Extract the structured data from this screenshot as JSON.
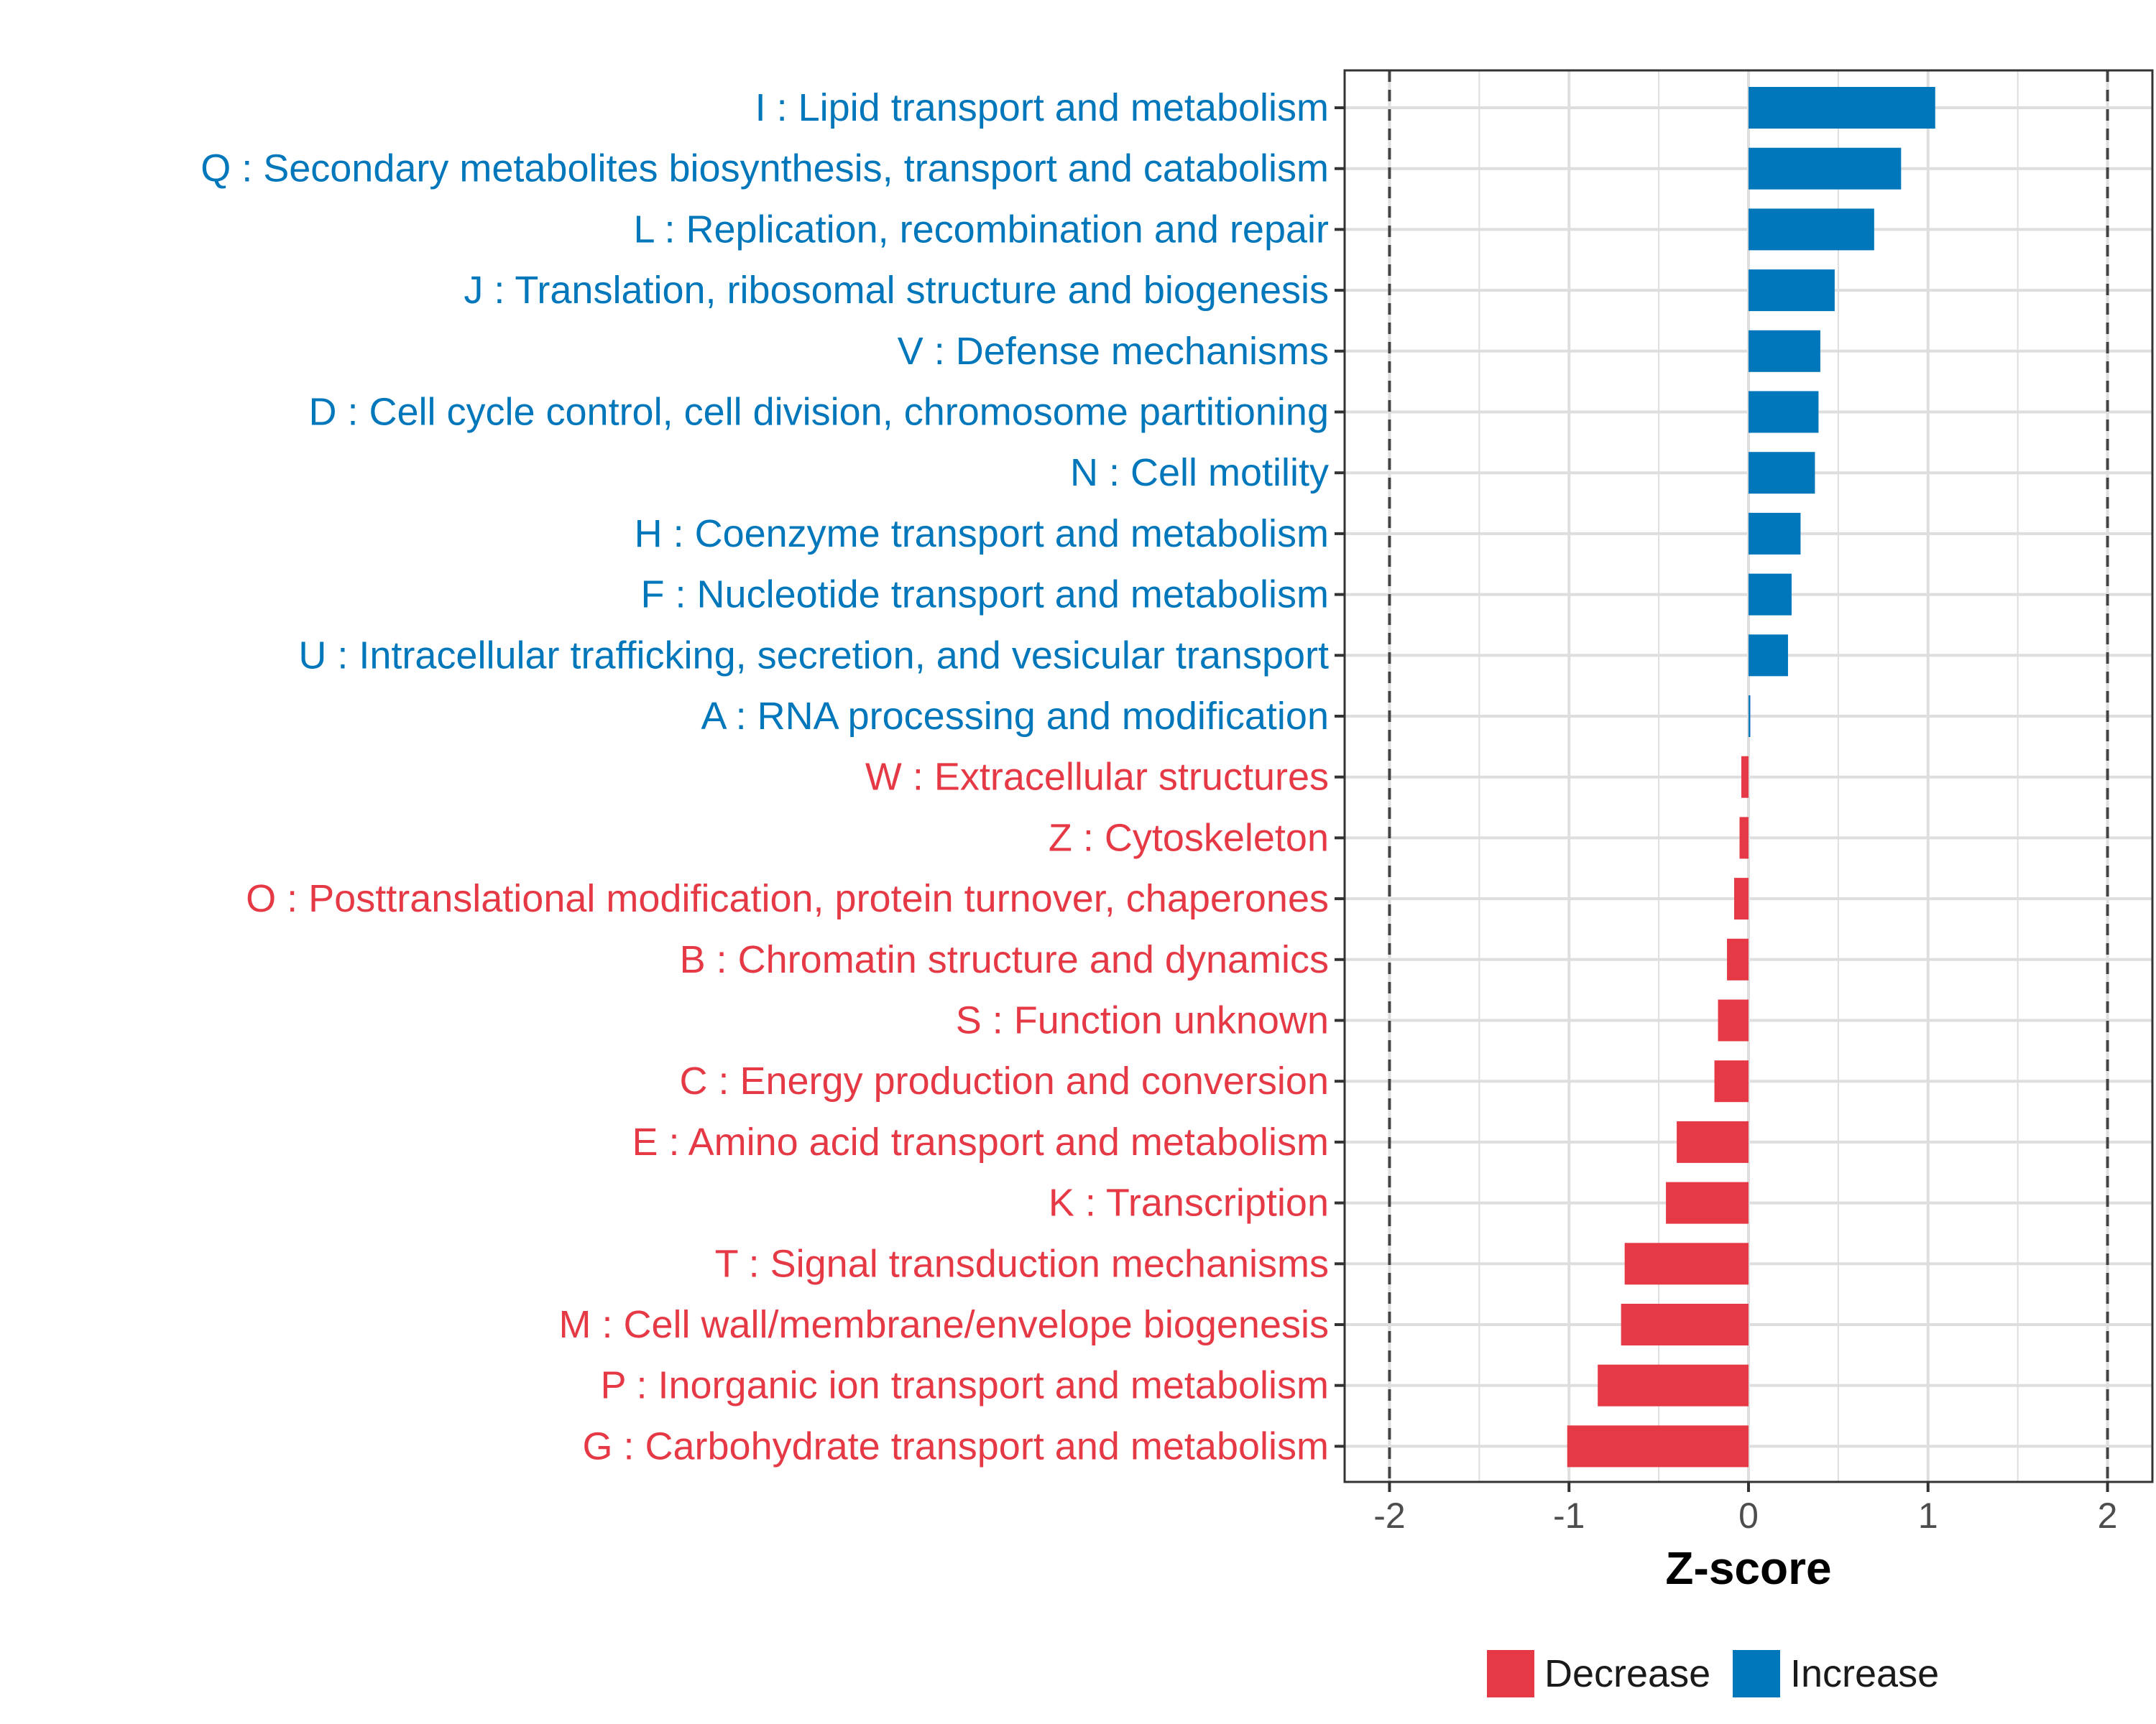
{
  "chart_data": {
    "type": "bar",
    "orientation": "horizontal",
    "xlabel": "Z-score",
    "xlim": [
      -2.25,
      2.25
    ],
    "xticks": [
      -2,
      -1,
      0,
      1,
      2
    ],
    "xtick_labels": [
      "-2",
      "-1",
      "0",
      "1",
      "2"
    ],
    "reference_lines": [
      -2,
      2
    ],
    "grid": true,
    "legend_position": "bottom",
    "colors": {
      "Increase": "#0077bb",
      "Decrease": "#e63946"
    },
    "legend": [
      {
        "label": "Decrease",
        "color": "#e63946"
      },
      {
        "label": "Increase",
        "color": "#0077bb"
      }
    ],
    "categories": [
      "I : Lipid transport and metabolism",
      "Q : Secondary metabolites biosynthesis, transport and catabolism",
      "L : Replication, recombination and repair",
      "J : Translation, ribosomal structure and biogenesis",
      "V : Defense mechanisms",
      "D : Cell cycle control, cell division, chromosome partitioning",
      "N : Cell motility",
      "H : Coenzyme transport and metabolism",
      "F : Nucleotide transport and metabolism",
      "U : Intracellular trafficking, secretion, and vesicular transport",
      "A : RNA processing and modification",
      "W : Extracellular structures",
      "Z : Cytoskeleton",
      "O : Posttranslational modification, protein turnover, chaperones",
      "B : Chromatin structure and dynamics",
      "S : Function unknown",
      "C : Energy production and conversion",
      "E : Amino acid transport and metabolism",
      "K : Transcription",
      "T : Signal transduction mechanisms",
      "M : Cell wall/membrane/envelope biogenesis",
      "P : Inorganic ion transport and metabolism",
      "G : Carbohydrate transport and metabolism"
    ],
    "values": [
      1.04,
      0.85,
      0.7,
      0.48,
      0.4,
      0.39,
      0.37,
      0.29,
      0.24,
      0.22,
      0.01,
      -0.04,
      -0.05,
      -0.08,
      -0.12,
      -0.17,
      -0.19,
      -0.4,
      -0.46,
      -0.69,
      -0.71,
      -0.84,
      -1.01
    ],
    "groups": [
      "Increase",
      "Increase",
      "Increase",
      "Increase",
      "Increase",
      "Increase",
      "Increase",
      "Increase",
      "Increase",
      "Increase",
      "Increase",
      "Decrease",
      "Decrease",
      "Decrease",
      "Decrease",
      "Decrease",
      "Decrease",
      "Decrease",
      "Decrease",
      "Decrease",
      "Decrease",
      "Decrease",
      "Decrease"
    ]
  }
}
